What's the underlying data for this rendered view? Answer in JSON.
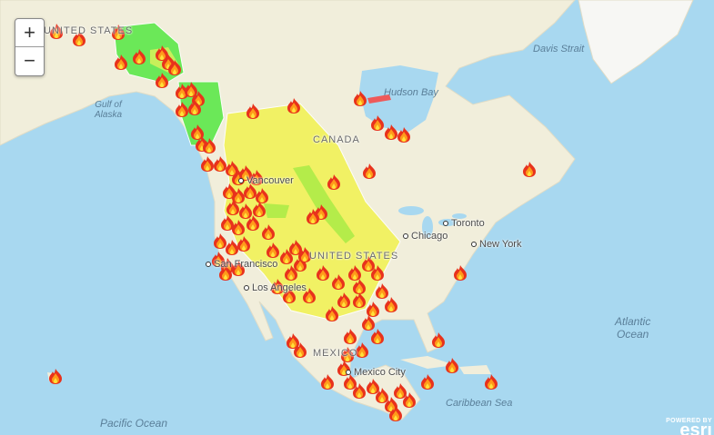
{
  "map": {
    "colors": {
      "ocean": "#a8d8f0",
      "land": "#f1eedb",
      "fire_zone_green": "#5de84a",
      "fire_zone_yellow": "#f2f25a",
      "fire_zone_lightgreen": "#b4ec4a",
      "fire_zone_red": "#ee5a5a"
    },
    "labels": {
      "us_top": "UNITED STATES",
      "gulf_of_alaska": "Gulf of\nAlaska",
      "canada": "CANADA",
      "united_states": "UNITED STATES",
      "mexico": "MEXICO",
      "davis_strait": "Davis Strait",
      "hudson_bay": "Hudson Bay",
      "toronto": "Toronto",
      "chicago": "Chicago",
      "new_york": "New York",
      "san_francisco": "San Francisco",
      "vancouver": "Vancouver",
      "los_angeles": "Los Angeles",
      "mexico_city": "Mexico City",
      "caribbean_sea": "Caribbean Sea",
      "pacific_ocean": "Pacific Ocean",
      "atlantic_ocean": "Atlantic\nOcean"
    },
    "marker_icon": "fire-icon"
  },
  "zoom": {
    "in": "+",
    "out": "−"
  },
  "attribution": {
    "powered_by": "POWERED BY",
    "brand": "esri"
  }
}
